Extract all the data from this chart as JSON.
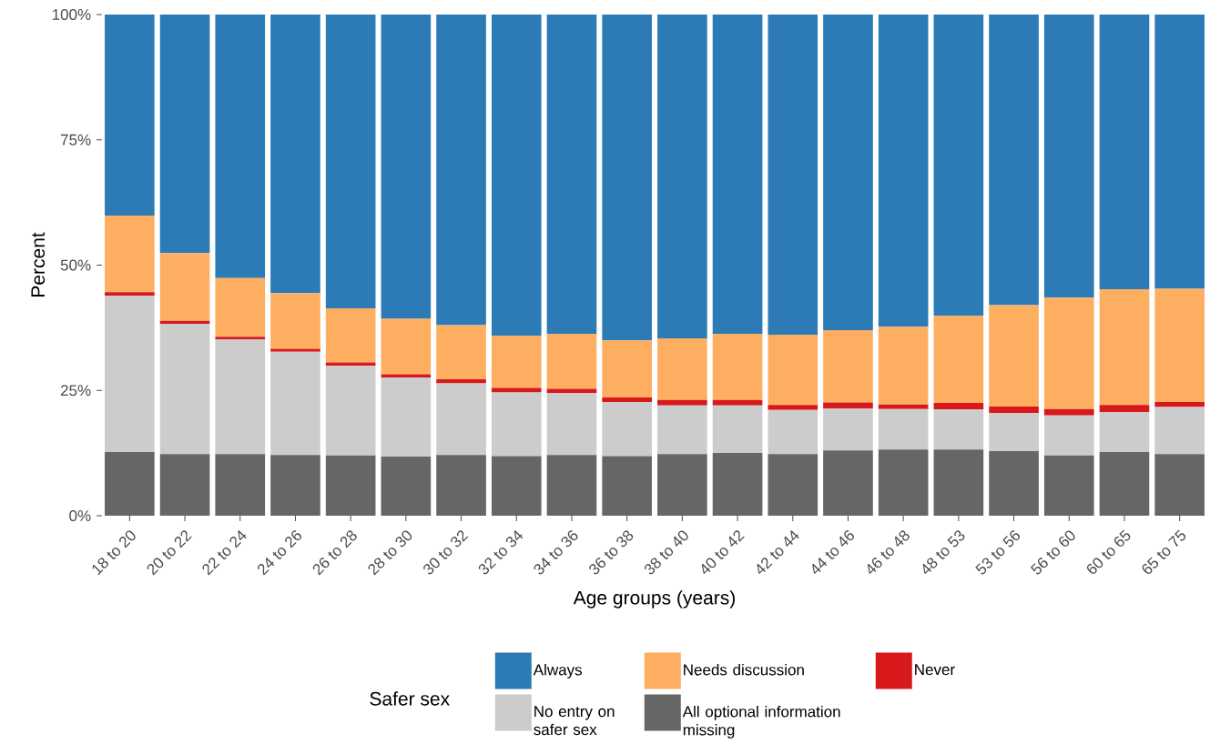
{
  "chart_data": {
    "type": "bar",
    "stacked": true,
    "xlabel": "Age groups (years)",
    "ylabel": "Percent",
    "legend_title": "Safer sex",
    "legend": "bottom",
    "categories": [
      "18 to 20",
      "20 to 22",
      "22 to 24",
      "24 to 26",
      "26 to 28",
      "28 to 30",
      "30 to 32",
      "32 to 34",
      "34 to 36",
      "36 to 38",
      "38 to 40",
      "40 to 42",
      "42 to 44",
      "44 to 46",
      "46 to 48",
      "48 to 53",
      "53 to 56",
      "56 to 60",
      "60 to 65",
      "65 to 75"
    ],
    "ylim": [
      0,
      100
    ],
    "yticks": [
      {
        "value": 0,
        "label": "0%"
      },
      {
        "value": 25,
        "label": "25%"
      },
      {
        "value": 50,
        "label": "50%"
      },
      {
        "value": 75,
        "label": "75%"
      },
      {
        "value": 100,
        "label": "100%"
      }
    ],
    "series": [
      {
        "name": "All optional information missing",
        "color": "#666666",
        "values": [
          12.7,
          12.3,
          12.3,
          12.1,
          12.0,
          11.8,
          12.1,
          11.9,
          12.1,
          11.9,
          12.3,
          12.5,
          12.3,
          13.0,
          13.2,
          13.2,
          12.9,
          12.0,
          12.7,
          12.3
        ]
      },
      {
        "name": "No entry on safer sex",
        "color": "#cccccc",
        "values": [
          31.2,
          26.0,
          22.9,
          20.6,
          17.9,
          15.8,
          14.3,
          12.7,
          12.4,
          10.8,
          9.7,
          9.5,
          8.8,
          8.4,
          8.1,
          8.0,
          7.6,
          8.0,
          8.0,
          9.4
        ]
      },
      {
        "name": "Never",
        "color": "#d7191c",
        "values": [
          0.7,
          0.6,
          0.5,
          0.6,
          0.7,
          0.6,
          0.8,
          0.9,
          0.8,
          0.9,
          1.1,
          1.1,
          1.0,
          1.2,
          0.9,
          1.3,
          1.3,
          1.3,
          1.4,
          1.0
        ]
      },
      {
        "name": "Needs discussion",
        "color": "#fdae61",
        "values": [
          15.3,
          13.5,
          11.7,
          11.1,
          10.8,
          11.1,
          10.8,
          10.4,
          11.0,
          11.4,
          12.3,
          13.2,
          14.0,
          14.4,
          15.5,
          17.4,
          20.2,
          22.2,
          23.1,
          22.6
        ]
      },
      {
        "name": "Always",
        "color": "#2c7bb6",
        "values": [
          40.1,
          47.6,
          52.6,
          55.6,
          58.6,
          60.7,
          62.0,
          64.1,
          63.7,
          65.0,
          64.6,
          63.7,
          63.9,
          63.0,
          62.3,
          60.1,
          58.0,
          56.5,
          54.8,
          54.7
        ]
      }
    ]
  }
}
